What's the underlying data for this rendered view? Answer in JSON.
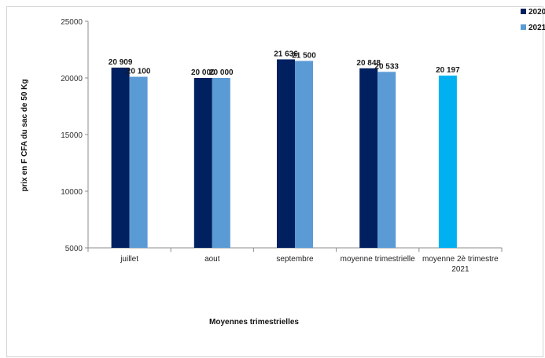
{
  "chart_data": {
    "type": "bar",
    "title": "",
    "xlabel": "Moyennes trimestrielles",
    "ylabel": "prix en F CFA du sac de 50 Kg",
    "ylim": [
      5000,
      25000
    ],
    "yticks": [
      5000,
      10000,
      15000,
      20000,
      25000
    ],
    "categories": [
      "juillet",
      "aout",
      "septembre",
      "moyenne trimestrielle",
      "moyenne 2è  trimestre 2021"
    ],
    "series": [
      {
        "name": "2020",
        "color": "#002060",
        "values": [
          20909,
          20000,
          21636,
          20848,
          null
        ],
        "labels": [
          "20 909",
          "20 000",
          "21 636",
          "20 848",
          ""
        ]
      },
      {
        "name": "2021",
        "color": "#5B9BD5",
        "values": [
          20100,
          20000,
          21500,
          20533,
          null
        ],
        "labels": [
          "20 100",
          "20 000",
          "21 500",
          "20 533",
          ""
        ]
      }
    ],
    "extra_bar": {
      "category_index": 4,
      "value": 20197,
      "label": "20 197",
      "color": "#00B0F0"
    },
    "legend_position": "top-right",
    "grid": false
  }
}
